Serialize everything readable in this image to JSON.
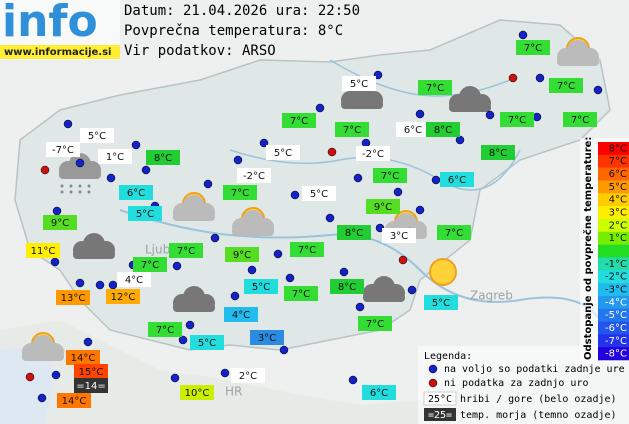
{
  "header": {
    "logo": "info",
    "site": "www.informacije.si",
    "date_line": "Datum: 21.04.2026 ura: 22:50",
    "avg_line": "Povprečna temperatura: 8°C",
    "source_line": "Vir podatkov: ARSO"
  },
  "map_labels": [
    "Ljubljana",
    "Zagreb",
    "HR"
  ],
  "stations": [
    {
      "label": "7°C",
      "color": "#33dd33"
    },
    {
      "label": "5°C",
      "color": "#ffffff"
    },
    {
      "label": "7°C",
      "color": "#33dd33"
    },
    {
      "label": "7°C",
      "color": "#33dd33"
    },
    {
      "label": "7°C",
      "color": "#33dd33"
    },
    {
      "label": "7°C",
      "color": "#33dd33"
    },
    {
      "label": "6°C",
      "color": "#ffffff"
    },
    {
      "label": "8°C",
      "color": "#22cc33"
    },
    {
      "label": "7°C",
      "color": "#33dd33"
    },
    {
      "label": "7°C",
      "color": "#33dd33"
    },
    {
      "label": "5°C",
      "color": "#ffffff"
    },
    {
      "label": "-7°C",
      "color": "#ffffff"
    },
    {
      "label": "1°C",
      "color": "#ffffff"
    },
    {
      "label": "8°C",
      "color": "#22cc33"
    },
    {
      "label": "5°C",
      "color": "#ffffff"
    },
    {
      "label": "-2°C",
      "color": "#ffffff"
    },
    {
      "label": "8°C",
      "color": "#22cc33"
    },
    {
      "label": "-2°C",
      "color": "#ffffff"
    },
    {
      "label": "7°C",
      "color": "#33dd33"
    },
    {
      "label": "6°C",
      "color": "#22dddd"
    },
    {
      "label": "6°C",
      "color": "#22dddd"
    },
    {
      "label": "7°C",
      "color": "#33dd33"
    },
    {
      "label": "5°C",
      "color": "#ffffff"
    },
    {
      "label": "5°C",
      "color": "#22dddd"
    },
    {
      "label": "9°C",
      "color": "#55dd22"
    },
    {
      "label": "9°C",
      "color": "#55dd22"
    },
    {
      "label": "8°C",
      "color": "#22cc33"
    },
    {
      "label": "3°C",
      "color": "#ffffff"
    },
    {
      "label": "7°C",
      "color": "#33dd33"
    },
    {
      "label": "11°C",
      "color": "#ffee00"
    },
    {
      "label": "9°C",
      "color": "#55dd22"
    },
    {
      "label": "7°C",
      "color": "#33dd33"
    },
    {
      "label": "7°C",
      "color": "#33dd33"
    },
    {
      "label": "7°C",
      "color": "#33dd33"
    },
    {
      "label": "4°C",
      "color": "#ffffff"
    },
    {
      "label": "5°C",
      "color": "#22dddd"
    },
    {
      "label": "7°C",
      "color": "#33dd33"
    },
    {
      "label": "8°C",
      "color": "#22cc33"
    },
    {
      "label": "13°C",
      "color": "#ff9900"
    },
    {
      "label": "12°C",
      "color": "#ffaa00"
    },
    {
      "label": "5°C",
      "color": "#22dddd"
    },
    {
      "label": "4°C",
      "color": "#22bbee"
    },
    {
      "label": "7°C",
      "color": "#33dd33"
    },
    {
      "label": "7°C",
      "color": "#33dd33"
    },
    {
      "label": "5°C",
      "color": "#22dddd"
    },
    {
      "label": "3°C",
      "color": "#2a8be0"
    },
    {
      "label": "14°C",
      "color": "#ff7700"
    },
    {
      "label": "15°C",
      "color": "#ff4400"
    },
    {
      "label": "=14=",
      "color": "#333333"
    },
    {
      "label": "2°C",
      "color": "#ffffff"
    },
    {
      "label": "10°C",
      "color": "#ccee00"
    },
    {
      "label": "6°C",
      "color": "#22dddd"
    },
    {
      "label": "14°C",
      "color": "#ff7700"
    }
  ],
  "legend": {
    "title": "Legenda:",
    "available": "na voljo so podatki zadnje ure",
    "missing": "ni podatka za zadnjo uro",
    "mountain_sample": "25°C",
    "mountain": "hribi / gore (belo ozadje)",
    "sea_sample": "=25=",
    "sea": "temp. morja (temno ozadje)"
  },
  "scale": {
    "title": "Odstopanje od povprečne temperature:",
    "labels": [
      "8°C",
      "7°C",
      "6°C",
      "5°C",
      "4°C",
      "3°C",
      "2°C",
      "1°C",
      null,
      "-1°C",
      "-2°C",
      "-3°C",
      "-4°C",
      "-5°C",
      "-6°C",
      "-7°C",
      "-8°C"
    ],
    "colors": [
      "#ff0000",
      "#ff3300",
      "#ff6600",
      "#ff9900",
      "#ffcc00",
      "#ffee00",
      "#ccff00",
      "#77ee00",
      "#22dd22",
      "#22ddaa",
      "#22dddd",
      "#22bbee",
      "#2299ee",
      "#2277ee",
      "#2255ee",
      "#2233ee",
      "#2200dd"
    ]
  }
}
